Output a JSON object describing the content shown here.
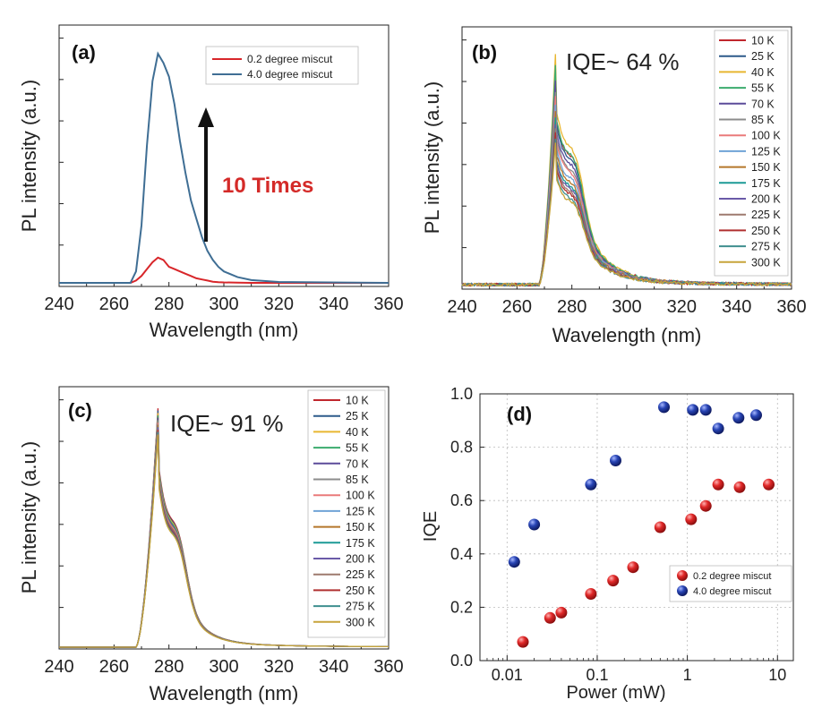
{
  "colors": {
    "temps": [
      "#c0272d",
      "#2d5a8a",
      "#e8b630",
      "#3bab6e",
      "#5b4b9a",
      "#8c8c8c",
      "#ea7a7a",
      "#6fa3d6",
      "#b5762a",
      "#1b9a96",
      "#6a5aa8",
      "#9e7a6e",
      "#b03030",
      "#3f8f8f",
      "#c7a43a"
    ],
    "red": "#d8262a",
    "blue": "#1f3f9f",
    "line02": "#d8262a",
    "line40": "#3f6e94",
    "annotRed": "#d42a28"
  },
  "panels": {
    "a": {
      "label": "(a)",
      "ylabel": "PL intensity (a.u.)",
      "xlabel": "Wavelength (nm)",
      "xticks": [
        "240",
        "260",
        "280",
        "300",
        "320",
        "340",
        "360"
      ],
      "legend": [
        "0.2 degree miscut",
        "4.0 degree miscut"
      ],
      "annotation": "10 Times"
    },
    "b": {
      "label": "(b)",
      "ylabel": "PL intensity (a.u.)",
      "xlabel": "Wavelength (nm)",
      "xticks": [
        "240",
        "260",
        "280",
        "300",
        "320",
        "340",
        "360"
      ],
      "annotation": "IQE~ 64 %"
    },
    "c": {
      "label": "(c)",
      "ylabel": "PL intensity (a.u.)",
      "xlabel": "Wavelength (nm)",
      "xticks": [
        "240",
        "260",
        "280",
        "300",
        "320",
        "340",
        "360"
      ],
      "annotation": "IQE~ 91 %"
    },
    "d": {
      "label": "(d)",
      "ylabel": "IQE",
      "xlabel": "Power (mW)",
      "xticks": [
        "0.01",
        "0.1",
        "1",
        "10"
      ],
      "yticks": [
        "0.0",
        "0.2",
        "0.4",
        "0.6",
        "0.8",
        "1.0"
      ]
    }
  },
  "temps": [
    "10 K",
    "25 K",
    "40 K",
    "55 K",
    "70 K",
    "85 K",
    "100 K",
    "125 K",
    "150 K",
    "175 K",
    "200 K",
    "225 K",
    "250 K",
    "275 K",
    "300 K"
  ],
  "chart_data": [
    {
      "type": "line",
      "panel": "a",
      "xlim": [
        240,
        360
      ],
      "x": [
        240,
        266,
        268,
        270,
        272,
        274,
        276,
        278,
        280,
        282,
        284,
        286,
        288,
        290,
        292,
        294,
        296,
        298,
        300,
        305,
        310,
        320,
        360
      ],
      "series": [
        {
          "name": "0.2 degree miscut",
          "values": [
            0,
            0,
            0.01,
            0.03,
            0.06,
            0.09,
            0.11,
            0.1,
            0.07,
            0.06,
            0.05,
            0.04,
            0.03,
            0.02,
            0.015,
            0.01,
            0.005,
            0.003,
            0.002,
            0.001,
            0,
            0,
            0
          ]
        },
        {
          "name": "4.0 degree miscut",
          "values": [
            0,
            0,
            0.05,
            0.25,
            0.6,
            0.88,
            1.0,
            0.96,
            0.9,
            0.78,
            0.62,
            0.48,
            0.36,
            0.28,
            0.2,
            0.14,
            0.1,
            0.07,
            0.05,
            0.025,
            0.012,
            0.004,
            0
          ]
        }
      ]
    },
    {
      "type": "line",
      "panel": "b",
      "xlim": [
        240,
        360
      ],
      "temperatures": [
        "10 K",
        "25 K",
        "40 K",
        "55 K",
        "70 K",
        "85 K",
        "100 K",
        "125 K",
        "150 K",
        "175 K",
        "200 K",
        "225 K",
        "250 K",
        "275 K",
        "300 K"
      ],
      "peak_wavelength": 274,
      "peak_values": [
        0.94,
        0.92,
        1.0,
        0.95,
        0.88,
        0.84,
        0.82,
        0.78,
        0.75,
        0.72,
        0.7,
        0.68,
        0.66,
        0.63,
        0.61
      ]
    },
    {
      "type": "line",
      "panel": "c",
      "xlim": [
        240,
        360
      ],
      "temperatures": [
        "10 K",
        "25 K",
        "40 K",
        "55 K",
        "70 K",
        "85 K",
        "100 K",
        "125 K",
        "150 K",
        "175 K",
        "200 K",
        "225 K",
        "250 K",
        "275 K",
        "300 K"
      ],
      "peak_wavelength": 276,
      "peak_values": [
        1.0,
        0.99,
        0.98,
        0.97,
        0.96,
        0.95,
        0.94,
        0.93,
        0.93,
        0.92,
        0.92,
        0.91,
        0.91,
        0.9,
        0.89
      ]
    },
    {
      "type": "scatter",
      "panel": "d",
      "xscale": "log",
      "xlim": [
        0.005,
        15
      ],
      "ylim": [
        0,
        1.0
      ],
      "xlabel": "Power (mW)",
      "ylabel": "IQE",
      "series": [
        {
          "name": "0.2 degree miscut",
          "x": [
            0.015,
            0.03,
            0.04,
            0.085,
            0.15,
            0.25,
            0.5,
            1.1,
            1.6,
            2.2,
            3.8,
            8.0
          ],
          "y": [
            0.07,
            0.16,
            0.18,
            0.25,
            0.3,
            0.35,
            0.5,
            0.53,
            0.58,
            0.66,
            0.65,
            0.66
          ]
        },
        {
          "name": "4.0 degree miscut",
          "x": [
            0.012,
            0.02,
            0.085,
            0.16,
            0.55,
            1.15,
            1.6,
            2.2,
            3.7,
            5.8
          ],
          "y": [
            0.37,
            0.51,
            0.66,
            0.75,
            0.95,
            0.94,
            0.94,
            0.87,
            0.91,
            0.92
          ]
        }
      ]
    }
  ]
}
